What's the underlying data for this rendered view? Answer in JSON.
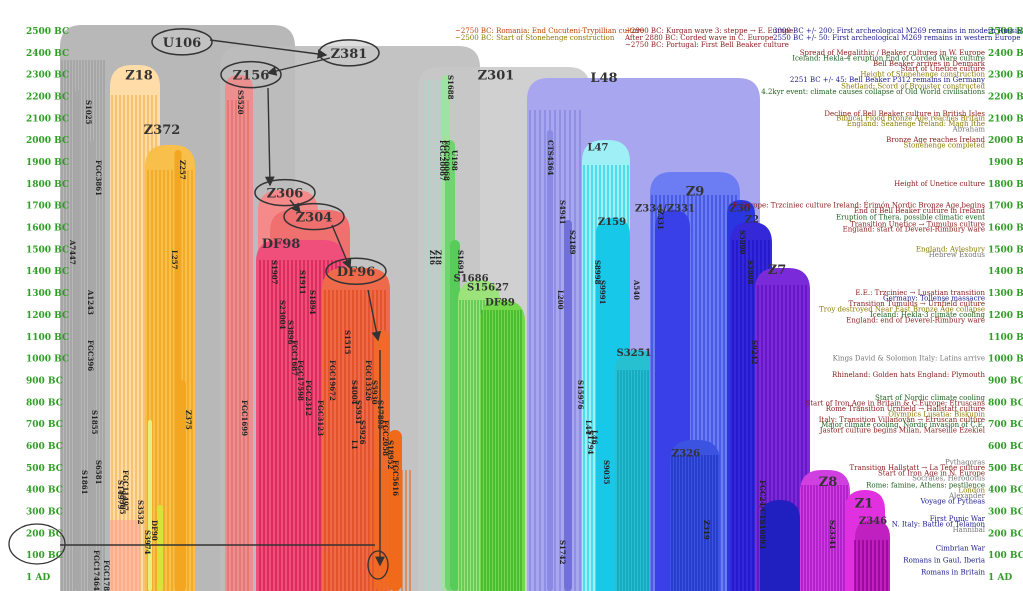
{
  "chart_data": {
    "type": "timeline-tree",
    "y_axis_ticks": [
      "2500 BC",
      "2400 BC",
      "2300 BC",
      "2200 BC",
      "2100 BC",
      "2000 BC",
      "1900 BC",
      "1800 BC",
      "1700 BC",
      "1600 BC",
      "1500 BC",
      "1400 BC",
      "1300 BC",
      "1200 BC",
      "1100 BC",
      "1000 BC",
      "900 BC",
      "800 BC",
      "700 BC",
      "600 BC",
      "500 BC",
      "400 BC",
      "300 BC",
      "200 BC",
      "100 BC",
      "1 AD"
    ],
    "y_range": [
      -2500,
      0
    ],
    "grid": false,
    "nodes": [
      {
        "label": "U106",
        "year": -2450,
        "circled": true
      },
      {
        "label": "Z381",
        "year": -2400,
        "circled": true
      },
      {
        "label": "Z156",
        "year": -2300,
        "circled": true
      },
      {
        "label": "Z18",
        "year": -2300
      },
      {
        "label": "Z301",
        "year": -2300
      },
      {
        "label": "L48",
        "year": -2290
      },
      {
        "label": "Z372",
        "year": -2050
      },
      {
        "label": "L47",
        "year": -1970
      },
      {
        "label": "Z9",
        "year": -1770
      },
      {
        "label": "Z306",
        "year": -1760,
        "circled": true
      },
      {
        "label": "Z304",
        "year": -1650,
        "circled": true
      },
      {
        "label": "Z30",
        "year": -1690
      },
      {
        "label": "Z334/Z331",
        "year": -1690
      },
      {
        "label": "Z2",
        "year": -1640
      },
      {
        "label": "Z159",
        "year": -1630
      },
      {
        "label": "DF98",
        "year": -1530
      },
      {
        "label": "Z7",
        "year": -1410
      },
      {
        "label": "DF96",
        "year": -1400,
        "circled": true
      },
      {
        "label": "S1686",
        "year": -1370
      },
      {
        "label": "S15627",
        "year": -1330
      },
      {
        "label": "DF89",
        "year": -1260
      },
      {
        "label": "S3251",
        "year": -1030
      },
      {
        "label": "Z326",
        "year": -570
      },
      {
        "label": "Z8",
        "year": -440
      },
      {
        "label": "Z1",
        "year": -340
      },
      {
        "label": "Z346",
        "year": -260
      }
    ],
    "vertical_labels": [
      "S1025",
      "FGC3861",
      "A7447",
      "FGC396",
      "A1243",
      "S1855",
      "S1861",
      "S6581",
      "FGC17464",
      "FGC17877",
      "Z257",
      "Z375",
      "FGC1699",
      "S3974",
      "S3532",
      "DF90",
      "S5305",
      "S14979",
      "FGC11497",
      "L257",
      "S5520",
      "S1911",
      "S1894",
      "S1907",
      "S23004",
      "S3896",
      "FGC1687",
      "FGC17598",
      "FGC2312",
      "FGC3123",
      "S1515",
      "L1",
      "FGC19672",
      "S4004",
      "S5931",
      "S5926",
      "FGC13326",
      "S5930",
      "S17895",
      "FGC2058",
      "S18952",
      "FGC5616",
      "S1688",
      "U198",
      "S1691",
      "Z16",
      "Z18",
      "FGC20067",
      "FGC20068",
      "L200",
      "S2189",
      "CTS4364",
      "S4941",
      "S15976",
      "S1794",
      "S8998",
      "S9991",
      "L44",
      "L46",
      "S9035",
      "A540",
      "Z331",
      "S5990",
      "S5908",
      "Z319",
      "FGC24/CTS10893",
      "S1742",
      "S9242",
      "S23341"
    ],
    "events_top": [
      "~2750 BC: Romania: End Cucuteni-Trypillian culture",
      "~2500 BC: Start of Stonehenge construction",
      "~2900 BC: Kurgan wave 3: steppe → E. Europe",
      "After 2880 BC: Corded wave in C. Europe",
      "~2750 BC: Portugal: First Bell Beaker culture",
      "3000 BC +/- 200: First archeological M269 remains in modern Russia",
      "2550 BC +/- 50: First archeological M269 remains in western Europe"
    ],
    "events": [
      {
        "year": -2400,
        "text": "Spread of Megalithic / Beaker cultures in W. Europe",
        "color": "#8b1a1a"
      },
      {
        "year": -2375,
        "text": "Iceland: Hekla-4 eruption   End of Corded Ware culture",
        "color": "#1e5e1e"
      },
      {
        "year": -2350,
        "text": "Bell Beaker arrives in Denmark",
        "color": "#8b1a1a"
      },
      {
        "year": -2325,
        "text": "Start of Unetice culture",
        "color": "#8b1a1a"
      },
      {
        "year": -2300,
        "text": "Height of Stonehenge construction",
        "color": "#8b7a00"
      },
      {
        "year": -2275,
        "text": "2251 BC +/- 45: Bell Beaker P312 remains in Germany",
        "color": "#1a1a8b"
      },
      {
        "year": -2245,
        "text": "Shetland: Scord of Brouster constructed",
        "color": "#8b7a00"
      },
      {
        "year": -2220,
        "text": "4.2kyr event: climate causes collapse of Old World civilisations",
        "color": "#1e5e1e"
      },
      {
        "year": -2120,
        "text": "Decline of Bell Beaker culture in British Isles",
        "color": "#8b1a1a"
      },
      {
        "year": -2100,
        "text": "Biblical Flood   Bronze Age reaches Britain",
        "color": "#8b7a00"
      },
      {
        "year": -2075,
        "text": "England: Seahenge   Ireland: Magh Ithe",
        "color": "#8b7a00"
      },
      {
        "year": -2050,
        "text": "Abraham",
        "color": "#777777"
      },
      {
        "year": -2000,
        "text": "Bronze Age reaches Ireland",
        "color": "#8b1a1a"
      },
      {
        "year": -1975,
        "text": "Stonehenge completed",
        "color": "#8b7a00"
      },
      {
        "year": -1800,
        "text": "Height of Unetice culture",
        "color": "#8b1a1a"
      },
      {
        "year": -1700,
        "text": "E.Europe: Trzciniec culture Ireland: Érimón Nordic Bronze Age begins",
        "color": "#8b1a1a"
      },
      {
        "year": -1675,
        "text": "End of Bell Beaker culture in Ireland",
        "color": "#8b1a1a"
      },
      {
        "year": -1645,
        "text": "Eruption of Thera, possible climatic event",
        "color": "#1e5e1e"
      },
      {
        "year": -1615,
        "text": "Transition Unetice → Tumulus culture",
        "color": "#8b1a1a"
      },
      {
        "year": -1590,
        "text": "England: start of Deverel-Rimbury ware",
        "color": "#8b1a1a"
      },
      {
        "year": -1500,
        "text": "England: Aylesbury",
        "color": "#8b7a00"
      },
      {
        "year": -1475,
        "text": "Hebrew Exodus",
        "color": "#777777"
      },
      {
        "year": -1300,
        "text": "E.E.: Trzciniec → Lusatian transition",
        "color": "#8b1a1a"
      },
      {
        "year": -1275,
        "text": "Germany: Tollense massacre",
        "color": "#1a1a8b"
      },
      {
        "year": -1250,
        "text": "Transition Tumulus → Urnfield culture",
        "color": "#8b1a1a"
      },
      {
        "year": -1225,
        "text": "Troy destroyed Near East Bronze Age collapse",
        "color": "#8b7a00"
      },
      {
        "year": -1200,
        "text": "Iceland: Hekla-3 climate cooling",
        "color": "#1e5e1e"
      },
      {
        "year": -1175,
        "text": "England: end of Deverel-Rimbury ware",
        "color": "#8b1a1a"
      },
      {
        "year": -1000,
        "text": "Kings David & Solomon  Italy: Latins arrive",
        "color": "#777777"
      },
      {
        "year": -925,
        "text": "Rhineland: Golden hats  England: Plymouth",
        "color": "#8b1a1a"
      },
      {
        "year": -820,
        "text": "Start of Nordic climate cooling",
        "color": "#1e5e1e"
      },
      {
        "year": -795,
        "text": "Start of Iron Age in Britain & C.Europe; Etruscans",
        "color": "#8b1a1a"
      },
      {
        "year": -770,
        "text": "Rome   Transition Urnfield → Hallstatt culture",
        "color": "#8b1a1a"
      },
      {
        "year": -745,
        "text": "Olympics Lusatia: Biskupin",
        "color": "#8b7a00"
      },
      {
        "year": -720,
        "text": "Italy: Transition Villanovan → Etruscan culture",
        "color": "#8b1a1a"
      },
      {
        "year": -695,
        "text": "Major climate cooling, Nordic invasion of C.E.",
        "color": "#1e5e1e"
      },
      {
        "year": -670,
        "text": "Jastorf culture begins Milan, Marseille Ezekiel",
        "color": "#8b1a1a"
      },
      {
        "year": -525,
        "text": "Pythagoras",
        "color": "#777777"
      },
      {
        "year": -500,
        "text": "Transition Hallstatt → La Tene culture",
        "color": "#8b1a1a"
      },
      {
        "year": -475,
        "text": "Start of Iron Age in N. Europe",
        "color": "#8b1a1a"
      },
      {
        "year": -450,
        "text": "Socrates, Herodotus",
        "color": "#777777"
      },
      {
        "year": -420,
        "text": "Rome: famine, Athens: pestilence",
        "color": "#1e5e1e"
      },
      {
        "year": -395,
        "text": "London",
        "color": "#8b7a00"
      },
      {
        "year": -370,
        "text": "Alexander",
        "color": "#777777"
      },
      {
        "year": -345,
        "text": "Voyage of Pytheas",
        "color": "#1a1a8b"
      },
      {
        "year": -265,
        "text": "First Punic War",
        "color": "#1a1a8b"
      },
      {
        "year": -240,
        "text": "N. Italy: Battle of Telamon",
        "color": "#1a1a8b"
      },
      {
        "year": -215,
        "text": "Hannibal",
        "color": "#777777"
      },
      {
        "year": -130,
        "text": "Cimbrian War",
        "color": "#1a1a8b"
      },
      {
        "year": -75,
        "text": "Romans in Gaul, Iberia",
        "color": "#1a1a8b"
      },
      {
        "year": -20,
        "text": "Romans in Britain",
        "color": "#1a1a8b"
      }
    ]
  }
}
